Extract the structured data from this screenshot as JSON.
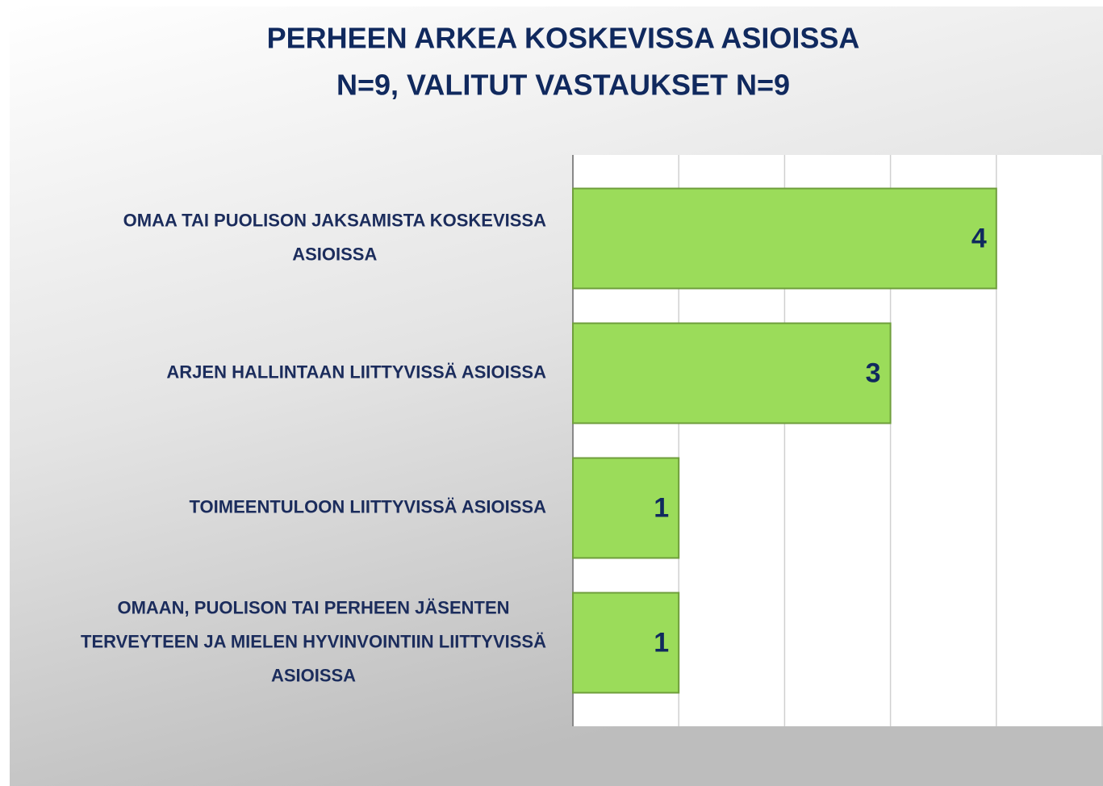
{
  "chart_data": {
    "type": "barh",
    "title": "PERHEEN ARKEA KOSKEVISSA ASIOISSA",
    "subtitle": "N=9, VALITUT VASTAUKSET N=9",
    "categories": [
      "OMAA TAI PUOLISON JAKSAMISTA KOSKEVISSA ASIOISSA",
      "ARJEN HALLINTAAN LIITTYVISSÄ ASIOISSA",
      "TOIMEENTULOON LIITTYVISSÄ ASIOISSA",
      "OMAAN, PUOLISON TAI PERHEEN JÄSENTEN TERVEYTEEN JA MIELEN HYVINVOINTIIN LIITTYVISSÄ ASIOISSA"
    ],
    "values": [
      4,
      3,
      1,
      1
    ],
    "color": "#9bdc5a",
    "xlim": [
      0,
      5
    ],
    "xticks": [
      0,
      1,
      2,
      3,
      4,
      5
    ],
    "grid": true
  }
}
